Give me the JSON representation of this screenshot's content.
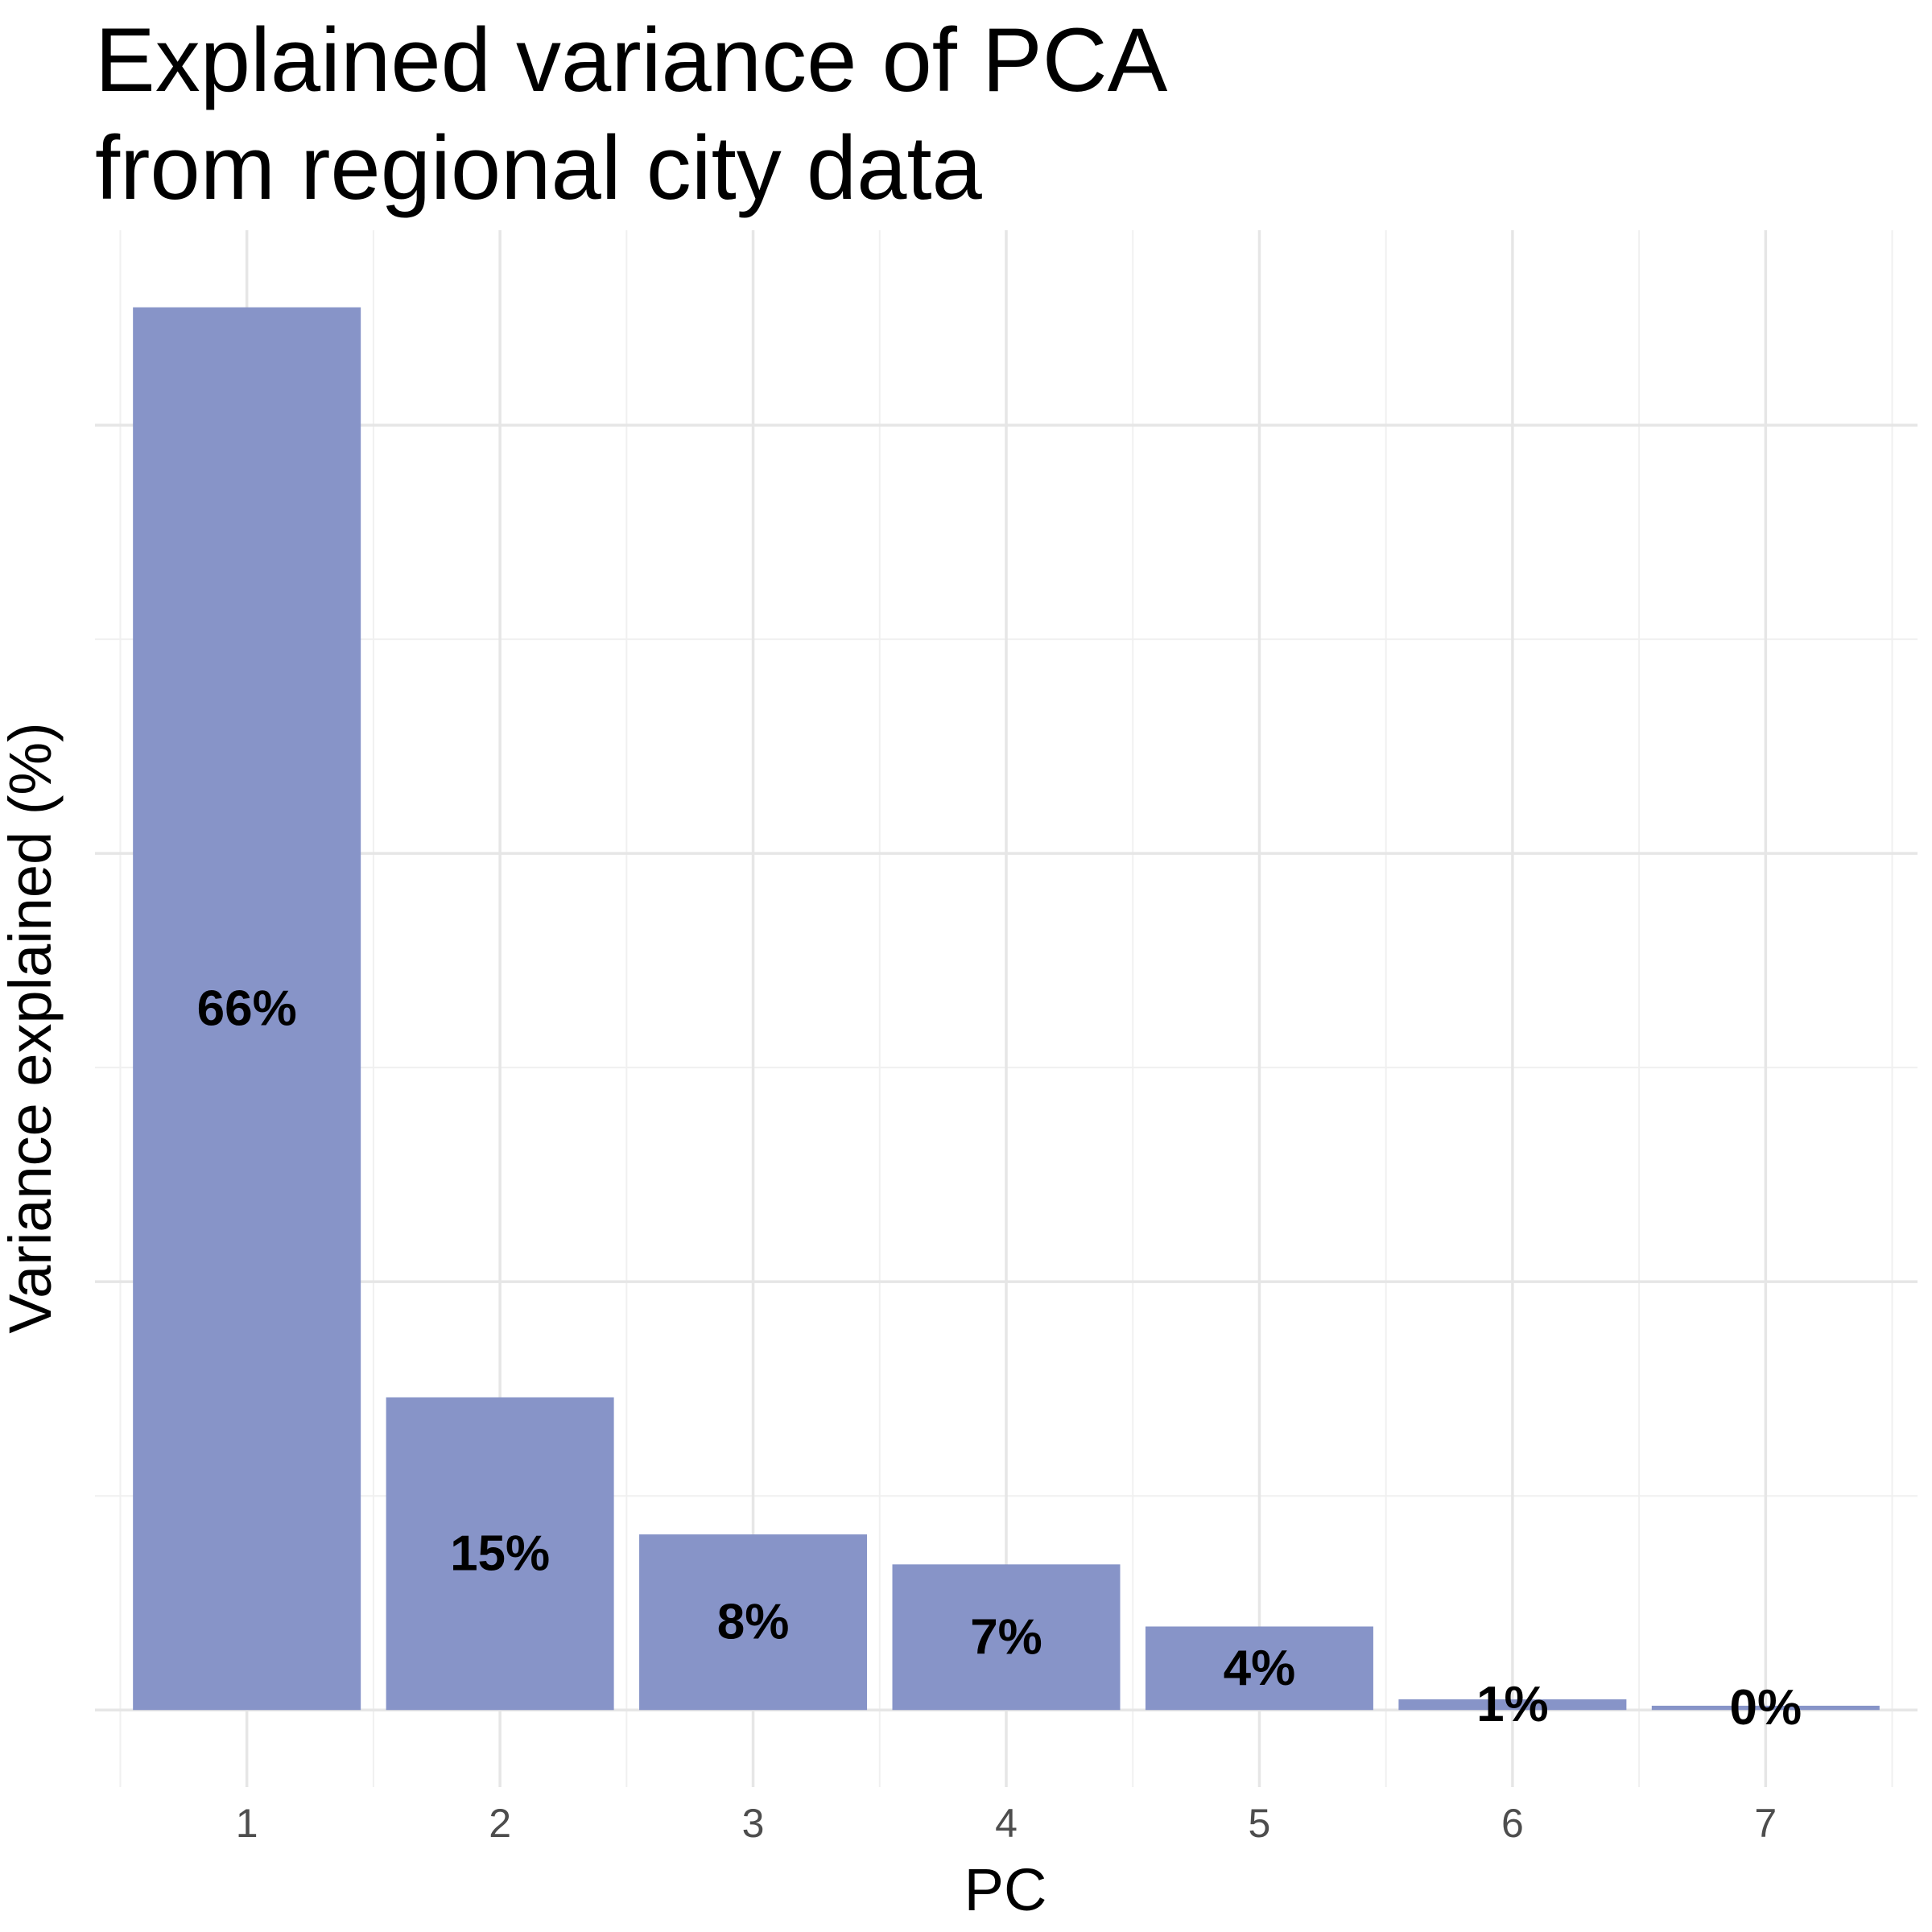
{
  "chart_data": {
    "type": "bar",
    "title_lines": [
      "Explained variance of PCA",
      "from regional city data"
    ],
    "xlabel": "PC",
    "ylabel": "Variance explained (%)",
    "categories": [
      "1",
      "2",
      "3",
      "4",
      "5",
      "6",
      "7"
    ],
    "values": [
      65.5,
      14.6,
      8.2,
      6.8,
      3.9,
      0.5,
      0.2
    ],
    "value_labels": [
      "66%",
      "15%",
      "8%",
      "7%",
      "4%",
      "1%",
      "0%"
    ],
    "ylim": [
      -3.6,
      69.1
    ],
    "y_gridlines": [
      0,
      20,
      40,
      60
    ],
    "y_minor_gridlines": [
      10,
      30,
      50
    ],
    "y_tick_labels_visible": false,
    "grid": true,
    "legend": "none",
    "colors": {
      "bar": "#8794c8",
      "grid_major": "#e6e6e6",
      "grid_minor": "#f0f0f0",
      "tick_text": "#4d4d4d",
      "text": "#000000",
      "background": "#ffffff"
    }
  }
}
